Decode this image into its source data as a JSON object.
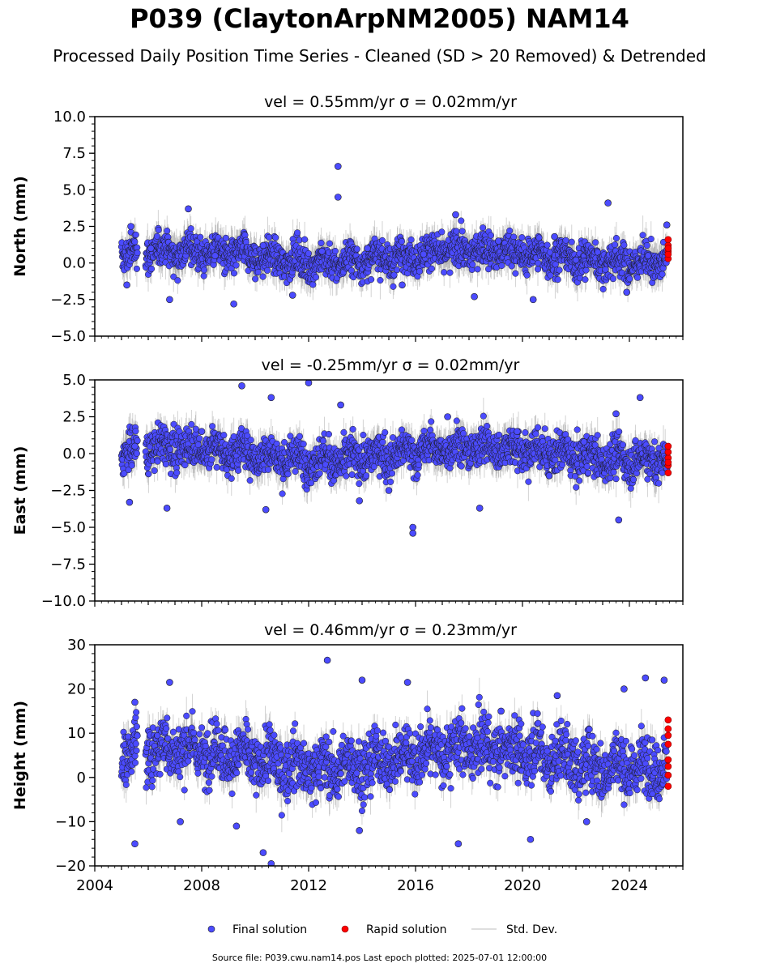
{
  "title": "P039 (ClaytonArpNM2005) NAM14",
  "subtitle": "Processed Daily Position Time Series - Cleaned (SD > 20 Removed) & Detrended",
  "source_note": "Source file: P039.cwu.nam14.pos  Last epoch plotted: 2025-07-01 12:00:00",
  "legend": [
    {
      "label": "Final solution",
      "color": "#4b4bff",
      "kind": "marker"
    },
    {
      "label": "Rapid solution",
      "color": "#ff0000",
      "kind": "marker"
    },
    {
      "label": "Std. Dev.",
      "color": "#d3d3d3",
      "kind": "line"
    }
  ],
  "colors": {
    "final": "#4b4bff",
    "rapid": "#ff0000",
    "stddev": "#808080"
  },
  "chart_data": [
    {
      "type": "scatter",
      "panel_title": "vel = 0.55mm/yr   σ = 0.02mm/yr",
      "ylabel": "North (mm)",
      "ylim": [
        -5.0,
        10.0
      ],
      "yticks": [
        "−5.0",
        "−2.5",
        "0.0",
        "2.5",
        "5.0",
        "7.5",
        "10.0"
      ],
      "ytick_values": [
        -5.0,
        -2.5,
        0.0,
        2.5,
        5.0,
        7.5,
        10.0
      ],
      "xlim": [
        2004.0,
        2026.0
      ],
      "xticks": [
        "2004",
        "2008",
        "2012",
        "2016",
        "2020",
        "2024"
      ],
      "series": [
        {
          "name": "Final solution",
          "x": [
            2005.2,
            2005.35,
            2006.1,
            2006.8,
            2007.5,
            2008.5,
            2009.2,
            2010.3,
            2011.4,
            2012.5,
            2013.1,
            2013.1,
            2014.2,
            2015.5,
            2016.3,
            2017.5,
            2018.2,
            2019.1,
            2020.4,
            2021.2,
            2022.0,
            2023.2,
            2023.9,
            2024.7,
            2025.4
          ],
          "y": [
            -1.5,
            2.5,
            1.0,
            -2.5,
            3.7,
            0.5,
            -2.8,
            1.2,
            -2.2,
            0.8,
            6.6,
            4.5,
            1.0,
            -1.5,
            0.6,
            3.3,
            -2.3,
            1.5,
            -2.5,
            1.8,
            0.2,
            4.1,
            -2.0,
            0.5,
            2.6
          ]
        },
        {
          "name": "Rapid solution",
          "x": [
            2025.45,
            2025.45,
            2025.45,
            2025.45,
            2025.45,
            2025.45
          ],
          "y": [
            0.3,
            0.8,
            1.2,
            1.6,
            0.6,
            1.0
          ]
        }
      ],
      "trend": {
        "center": 0.45,
        "spread": 1.0
      }
    },
    {
      "type": "scatter",
      "panel_title": "vel = -0.25mm/yr   σ = 0.02mm/yr",
      "ylabel": "East (mm)",
      "ylim": [
        -10.0,
        5.0
      ],
      "yticks": [
        "−10.0",
        "−7.5",
        "−5.0",
        "−2.5",
        "0.0",
        "2.5",
        "5.0"
      ],
      "ytick_values": [
        -10.0,
        -7.5,
        -5.0,
        -2.5,
        0.0,
        2.5,
        5.0
      ],
      "xlim": [
        2004.0,
        2026.0
      ],
      "xticks": [
        "2004",
        "2008",
        "2012",
        "2016",
        "2020",
        "2024"
      ],
      "series": [
        {
          "name": "Final solution",
          "x": [
            2005.3,
            2005.5,
            2006.7,
            2008.0,
            2009.5,
            2010.4,
            2010.6,
            2012.0,
            2013.2,
            2013.9,
            2015.0,
            2015.9,
            2015.9,
            2017.2,
            2018.4,
            2019.8,
            2021.0,
            2022.3,
            2023.5,
            2023.6,
            2024.4,
            2025.4
          ],
          "y": [
            -3.3,
            0.5,
            -3.7,
            1.5,
            4.6,
            -3.8,
            3.8,
            4.8,
            3.3,
            -3.2,
            -2.5,
            -5.0,
            -5.4,
            2.5,
            -3.7,
            1.5,
            -1.5,
            0.8,
            2.7,
            -4.5,
            3.8,
            -1.0
          ]
        },
        {
          "name": "Rapid solution",
          "x": [
            2025.45,
            2025.45,
            2025.45,
            2025.45,
            2025.45,
            2025.45
          ],
          "y": [
            -1.3,
            -0.8,
            -0.3,
            0.1,
            0.5,
            -0.6
          ]
        }
      ],
      "trend": {
        "center": 0.0,
        "spread": 1.1
      }
    },
    {
      "type": "scatter",
      "panel_title": "vel = 0.46mm/yr   σ = 0.23mm/yr",
      "ylabel": "Height (mm)",
      "ylim": [
        -20,
        30
      ],
      "yticks": [
        "−20",
        "−10",
        "0",
        "10",
        "20",
        "30"
      ],
      "ytick_values": [
        -20,
        -10,
        0,
        10,
        20,
        30
      ],
      "xlim": [
        2004.0,
        2026.0
      ],
      "xticks": [
        "2004",
        "2008",
        "2012",
        "2016",
        "2020",
        "2024"
      ],
      "series": [
        {
          "name": "Final solution",
          "x": [
            2005.5,
            2005.5,
            2006.8,
            2007.2,
            2009.3,
            2010.3,
            2010.6,
            2012.7,
            2013.9,
            2014.0,
            2015.7,
            2017.6,
            2019.2,
            2020.3,
            2021.3,
            2022.4,
            2023.8,
            2024.6,
            2025.3
          ],
          "y": [
            17.0,
            -15.0,
            21.5,
            -10.0,
            -11.0,
            -17.0,
            -19.5,
            26.5,
            -12.0,
            22.0,
            21.5,
            -15.0,
            15.0,
            -14.0,
            18.5,
            -10.0,
            20.0,
            22.5,
            22.0
          ]
        },
        {
          "name": "Rapid solution",
          "x": [
            2025.45,
            2025.45,
            2025.45,
            2025.45,
            2025.45,
            2025.45,
            2025.45,
            2025.45
          ],
          "y": [
            -2.0,
            0.5,
            2.5,
            4.0,
            7.5,
            9.5,
            11.0,
            13.0
          ]
        }
      ],
      "trend": {
        "center": 4.5,
        "spread": 5.5
      }
    }
  ]
}
